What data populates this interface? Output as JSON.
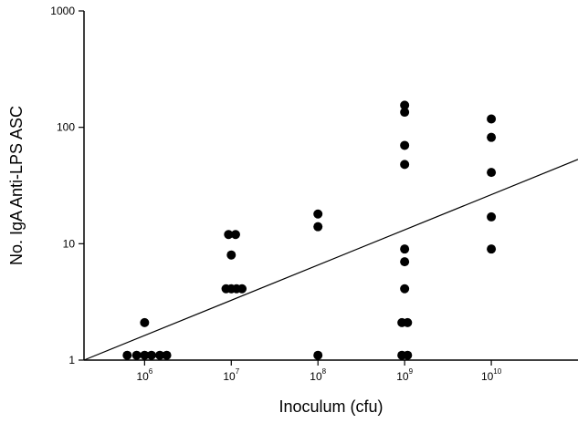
{
  "chart_data": {
    "type": "scatter",
    "title": "",
    "xlabel": "Inoculum (cfu)",
    "ylabel": "No. IgA Anti-LPS ASC",
    "x_scale": "log",
    "y_scale": "log",
    "xlim": [
      200000,
      100000000000.0
    ],
    "ylim": [
      1,
      1000
    ],
    "x_ticks": [
      {
        "base": "10",
        "exp": "6",
        "value": 1000000
      },
      {
        "base": "10",
        "exp": "7",
        "value": 10000000
      },
      {
        "base": "10",
        "exp": "8",
        "value": 100000000
      },
      {
        "base": "10",
        "exp": "9",
        "value": 1000000000
      },
      {
        "base": "10",
        "exp": "10",
        "value": 10000000000
      }
    ],
    "y_ticks": [
      {
        "label": "1",
        "value": 1
      },
      {
        "label": "10",
        "value": 10
      },
      {
        "label": "100",
        "value": 100
      },
      {
        "label": "1000",
        "value": 1000
      }
    ],
    "grid": false,
    "legend": "none",
    "marker_color": "#000000",
    "points": [
      {
        "x": 630000,
        "y": 1.1
      },
      {
        "x": 810000,
        "y": 1.1
      },
      {
        "x": 1000000,
        "y": 1.1
      },
      {
        "x": 1200000,
        "y": 1.1
      },
      {
        "x": 1500000,
        "y": 1.1
      },
      {
        "x": 1800000,
        "y": 1.1
      },
      {
        "x": 1000000,
        "y": 2.1
      },
      {
        "x": 8700000,
        "y": 4.1
      },
      {
        "x": 10000000,
        "y": 4.1
      },
      {
        "x": 11500000,
        "y": 4.1
      },
      {
        "x": 13300000,
        "y": 4.1
      },
      {
        "x": 10000000,
        "y": 8.0
      },
      {
        "x": 9300000,
        "y": 12.0
      },
      {
        "x": 11200000,
        "y": 12.0
      },
      {
        "x": 100000000,
        "y": 1.1
      },
      {
        "x": 100000000,
        "y": 14.0
      },
      {
        "x": 100000000,
        "y": 18.0
      },
      {
        "x": 930000000,
        "y": 1.1
      },
      {
        "x": 1080000000,
        "y": 1.1
      },
      {
        "x": 930000000,
        "y": 2.1
      },
      {
        "x": 1080000000,
        "y": 2.1
      },
      {
        "x": 1000000000,
        "y": 4.1
      },
      {
        "x": 1000000000,
        "y": 7.0
      },
      {
        "x": 1000000000,
        "y": 9.0
      },
      {
        "x": 1000000000,
        "y": 48
      },
      {
        "x": 1000000000,
        "y": 70
      },
      {
        "x": 1000000000,
        "y": 135
      },
      {
        "x": 1000000000,
        "y": 155
      },
      {
        "x": 10000000000,
        "y": 9.0
      },
      {
        "x": 10000000000,
        "y": 17
      },
      {
        "x": 10000000000,
        "y": 41
      },
      {
        "x": 10000000000,
        "y": 82
      },
      {
        "x": 10000000000,
        "y": 118
      }
    ],
    "regression_line": {
      "x": [
        200000,
        100000000000.0
      ],
      "y": [
        1.0,
        53
      ]
    }
  }
}
